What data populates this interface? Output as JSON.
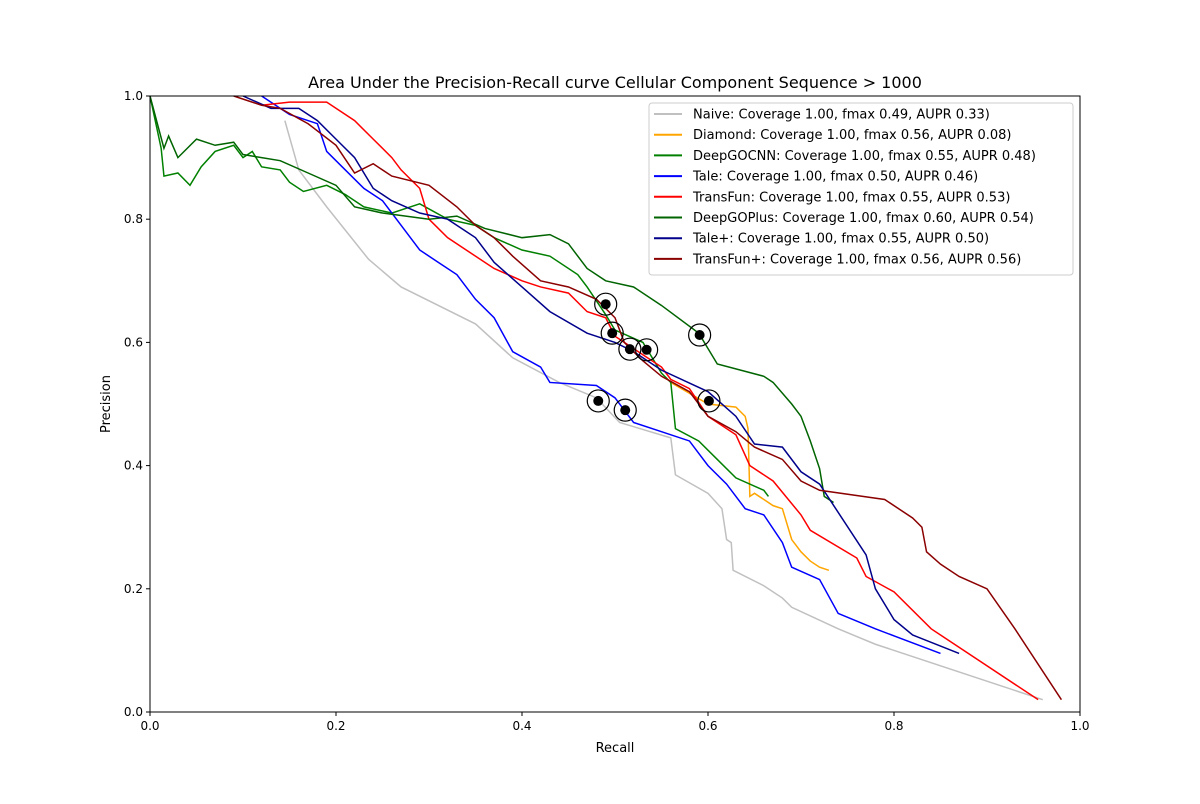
{
  "chart_data": {
    "type": "line",
    "title": "Area Under the Precision-Recall curve Cellular Component Sequence > 1000",
    "xlabel": "Recall",
    "ylabel": "Precision",
    "xlim": [
      0,
      1
    ],
    "ylim": [
      0,
      1
    ],
    "xticks": [
      "0.0",
      "0.2",
      "0.4",
      "0.6",
      "0.8",
      "1.0"
    ],
    "yticks": [
      "0.0",
      "0.2",
      "0.4",
      "0.6",
      "0.8",
      "1.0"
    ],
    "grid": false,
    "legend_placement": "top-right",
    "series": [
      {
        "name": "Naive: Coverage  1.00, fmax  0.49, AUPR 0.33)",
        "color": "#c0c0c0",
        "points": [
          [
            0.145,
            0.96
          ],
          [
            0.16,
            0.88
          ],
          [
            0.19,
            0.82
          ],
          [
            0.235,
            0.735
          ],
          [
            0.27,
            0.69
          ],
          [
            0.35,
            0.63
          ],
          [
            0.39,
            0.575
          ],
          [
            0.44,
            0.535
          ],
          [
            0.48,
            0.51
          ],
          [
            0.505,
            0.47
          ],
          [
            0.56,
            0.445
          ],
          [
            0.565,
            0.385
          ],
          [
            0.6,
            0.355
          ],
          [
            0.615,
            0.33
          ],
          [
            0.62,
            0.28
          ],
          [
            0.625,
            0.275
          ],
          [
            0.627,
            0.23
          ],
          [
            0.66,
            0.205
          ],
          [
            0.68,
            0.185
          ],
          [
            0.69,
            0.17
          ],
          [
            0.74,
            0.135
          ],
          [
            0.78,
            0.11
          ],
          [
            0.85,
            0.075
          ],
          [
            0.96,
            0.02
          ]
        ]
      },
      {
        "name": "Diamond: Coverage  1.00, fmax  0.56, AUPR 0.08)",
        "color": "#ffa500",
        "points": [
          [
            0.56,
            0.535
          ],
          [
            0.6,
            0.5
          ],
          [
            0.63,
            0.495
          ],
          [
            0.64,
            0.48
          ],
          [
            0.643,
            0.46
          ],
          [
            0.645,
            0.35
          ],
          [
            0.65,
            0.355
          ],
          [
            0.67,
            0.335
          ],
          [
            0.68,
            0.33
          ],
          [
            0.69,
            0.28
          ],
          [
            0.7,
            0.26
          ],
          [
            0.71,
            0.245
          ],
          [
            0.72,
            0.235
          ],
          [
            0.73,
            0.23
          ]
        ]
      },
      {
        "name": "DeepGOCNN: Coverage  1.00, fmax  0.55, AUPR 0.48)",
        "color": "#008000",
        "points": [
          [
            0.0,
            1.0
          ],
          [
            0.012,
            0.915
          ],
          [
            0.015,
            0.87
          ],
          [
            0.03,
            0.875
          ],
          [
            0.043,
            0.855
          ],
          [
            0.055,
            0.885
          ],
          [
            0.07,
            0.91
          ],
          [
            0.09,
            0.92
          ],
          [
            0.1,
            0.9
          ],
          [
            0.11,
            0.91
          ],
          [
            0.12,
            0.885
          ],
          [
            0.14,
            0.88
          ],
          [
            0.15,
            0.86
          ],
          [
            0.165,
            0.845
          ],
          [
            0.19,
            0.855
          ],
          [
            0.21,
            0.84
          ],
          [
            0.23,
            0.82
          ],
          [
            0.26,
            0.81
          ],
          [
            0.29,
            0.825
          ],
          [
            0.32,
            0.8
          ],
          [
            0.35,
            0.79
          ],
          [
            0.37,
            0.77
          ],
          [
            0.4,
            0.75
          ],
          [
            0.43,
            0.74
          ],
          [
            0.46,
            0.71
          ],
          [
            0.47,
            0.69
          ],
          [
            0.49,
            0.645
          ],
          [
            0.5,
            0.62
          ],
          [
            0.53,
            0.6
          ],
          [
            0.55,
            0.55
          ],
          [
            0.56,
            0.535
          ],
          [
            0.565,
            0.46
          ],
          [
            0.59,
            0.44
          ],
          [
            0.61,
            0.41
          ],
          [
            0.63,
            0.38
          ],
          [
            0.66,
            0.36
          ],
          [
            0.665,
            0.35
          ]
        ]
      },
      {
        "name": "Tale: Coverage  1.00, fmax  0.50, AUPR 0.46)",
        "color": "#0000ff",
        "points": [
          [
            0.12,
            1.0
          ],
          [
            0.15,
            0.97
          ],
          [
            0.18,
            0.955
          ],
          [
            0.19,
            0.91
          ],
          [
            0.21,
            0.88
          ],
          [
            0.23,
            0.85
          ],
          [
            0.25,
            0.83
          ],
          [
            0.27,
            0.79
          ],
          [
            0.29,
            0.75
          ],
          [
            0.31,
            0.73
          ],
          [
            0.33,
            0.71
          ],
          [
            0.35,
            0.67
          ],
          [
            0.37,
            0.64
          ],
          [
            0.39,
            0.585
          ],
          [
            0.42,
            0.56
          ],
          [
            0.43,
            0.535
          ],
          [
            0.48,
            0.53
          ],
          [
            0.5,
            0.51
          ],
          [
            0.51,
            0.49
          ],
          [
            0.52,
            0.47
          ],
          [
            0.55,
            0.455
          ],
          [
            0.58,
            0.44
          ],
          [
            0.6,
            0.4
          ],
          [
            0.62,
            0.37
          ],
          [
            0.64,
            0.33
          ],
          [
            0.66,
            0.32
          ],
          [
            0.68,
            0.275
          ],
          [
            0.69,
            0.235
          ],
          [
            0.72,
            0.215
          ],
          [
            0.74,
            0.16
          ],
          [
            0.78,
            0.135
          ],
          [
            0.85,
            0.095
          ]
        ]
      },
      {
        "name": "TransFun: Coverage  1.00, fmax  0.55, AUPR 0.53)",
        "color": "#ff0000",
        "points": [
          [
            0.12,
            0.985
          ],
          [
            0.15,
            0.99
          ],
          [
            0.19,
            0.99
          ],
          [
            0.22,
            0.96
          ],
          [
            0.24,
            0.93
          ],
          [
            0.26,
            0.9
          ],
          [
            0.27,
            0.88
          ],
          [
            0.29,
            0.85
          ],
          [
            0.3,
            0.8
          ],
          [
            0.32,
            0.77
          ],
          [
            0.34,
            0.75
          ],
          [
            0.37,
            0.72
          ],
          [
            0.4,
            0.7
          ],
          [
            0.42,
            0.69
          ],
          [
            0.45,
            0.68
          ],
          [
            0.47,
            0.65
          ],
          [
            0.49,
            0.64
          ],
          [
            0.5,
            0.61
          ],
          [
            0.53,
            0.58
          ],
          [
            0.55,
            0.56
          ],
          [
            0.56,
            0.54
          ],
          [
            0.58,
            0.525
          ],
          [
            0.6,
            0.48
          ],
          [
            0.63,
            0.45
          ],
          [
            0.645,
            0.4
          ],
          [
            0.67,
            0.375
          ],
          [
            0.7,
            0.32
          ],
          [
            0.71,
            0.295
          ],
          [
            0.76,
            0.25
          ],
          [
            0.77,
            0.22
          ],
          [
            0.8,
            0.195
          ],
          [
            0.84,
            0.135
          ],
          [
            0.955,
            0.02
          ]
        ]
      },
      {
        "name": "DeepGOPlus: Coverage  1.00, fmax  0.60, AUPR 0.54)",
        "color": "#006400",
        "points": [
          [
            0.0,
            1.0
          ],
          [
            0.015,
            0.915
          ],
          [
            0.02,
            0.935
          ],
          [
            0.03,
            0.9
          ],
          [
            0.05,
            0.93
          ],
          [
            0.07,
            0.92
          ],
          [
            0.09,
            0.925
          ],
          [
            0.1,
            0.905
          ],
          [
            0.12,
            0.9
          ],
          [
            0.14,
            0.895
          ],
          [
            0.17,
            0.875
          ],
          [
            0.2,
            0.855
          ],
          [
            0.22,
            0.82
          ],
          [
            0.25,
            0.81
          ],
          [
            0.3,
            0.8
          ],
          [
            0.33,
            0.805
          ],
          [
            0.36,
            0.785
          ],
          [
            0.4,
            0.77
          ],
          [
            0.43,
            0.775
          ],
          [
            0.45,
            0.76
          ],
          [
            0.47,
            0.72
          ],
          [
            0.49,
            0.7
          ],
          [
            0.52,
            0.69
          ],
          [
            0.55,
            0.66
          ],
          [
            0.59,
            0.615
          ],
          [
            0.61,
            0.565
          ],
          [
            0.66,
            0.545
          ],
          [
            0.67,
            0.535
          ],
          [
            0.69,
            0.5
          ],
          [
            0.7,
            0.48
          ],
          [
            0.71,
            0.44
          ],
          [
            0.72,
            0.395
          ],
          [
            0.725,
            0.35
          ],
          [
            0.735,
            0.34
          ]
        ]
      },
      {
        "name": "Tale+: Coverage  1.00, fmax  0.55, AUPR 0.50)",
        "color": "#00008b",
        "points": [
          [
            0.1,
            1.0
          ],
          [
            0.13,
            0.98
          ],
          [
            0.16,
            0.98
          ],
          [
            0.18,
            0.96
          ],
          [
            0.2,
            0.93
          ],
          [
            0.22,
            0.9
          ],
          [
            0.24,
            0.85
          ],
          [
            0.26,
            0.83
          ],
          [
            0.29,
            0.81
          ],
          [
            0.32,
            0.8
          ],
          [
            0.35,
            0.77
          ],
          [
            0.37,
            0.73
          ],
          [
            0.4,
            0.69
          ],
          [
            0.43,
            0.65
          ],
          [
            0.47,
            0.615
          ],
          [
            0.5,
            0.6
          ],
          [
            0.52,
            0.585
          ],
          [
            0.55,
            0.555
          ],
          [
            0.6,
            0.52
          ],
          [
            0.63,
            0.48
          ],
          [
            0.65,
            0.435
          ],
          [
            0.68,
            0.43
          ],
          [
            0.7,
            0.39
          ],
          [
            0.72,
            0.37
          ],
          [
            0.77,
            0.255
          ],
          [
            0.78,
            0.2
          ],
          [
            0.8,
            0.15
          ],
          [
            0.82,
            0.125
          ],
          [
            0.87,
            0.095
          ]
        ]
      },
      {
        "name": "TransFun+: Coverage  1.00, fmax  0.56, AUPR 0.56)",
        "color": "#8b0000",
        "points": [
          [
            0.09,
            1.0
          ],
          [
            0.12,
            0.985
          ],
          [
            0.14,
            0.98
          ],
          [
            0.17,
            0.955
          ],
          [
            0.2,
            0.92
          ],
          [
            0.22,
            0.875
          ],
          [
            0.24,
            0.89
          ],
          [
            0.26,
            0.87
          ],
          [
            0.3,
            0.855
          ],
          [
            0.33,
            0.82
          ],
          [
            0.35,
            0.79
          ],
          [
            0.37,
            0.77
          ],
          [
            0.39,
            0.74
          ],
          [
            0.42,
            0.7
          ],
          [
            0.45,
            0.69
          ],
          [
            0.48,
            0.67
          ],
          [
            0.5,
            0.64
          ],
          [
            0.51,
            0.6
          ],
          [
            0.53,
            0.57
          ],
          [
            0.55,
            0.545
          ],
          [
            0.58,
            0.52
          ],
          [
            0.6,
            0.48
          ],
          [
            0.63,
            0.455
          ],
          [
            0.65,
            0.43
          ],
          [
            0.68,
            0.41
          ],
          [
            0.7,
            0.375
          ],
          [
            0.72,
            0.36
          ],
          [
            0.79,
            0.345
          ],
          [
            0.82,
            0.315
          ],
          [
            0.83,
            0.3
          ],
          [
            0.835,
            0.26
          ],
          [
            0.85,
            0.24
          ],
          [
            0.87,
            0.22
          ],
          [
            0.9,
            0.2
          ],
          [
            0.93,
            0.135
          ],
          [
            0.98,
            0.02
          ]
        ]
      }
    ],
    "fmax_markers": [
      [
        0.49,
        0.662
      ],
      [
        0.497,
        0.615
      ],
      [
        0.516,
        0.589
      ],
      [
        0.534,
        0.588
      ],
      [
        0.591,
        0.612
      ],
      [
        0.601,
        0.505
      ],
      [
        0.482,
        0.505
      ],
      [
        0.511,
        0.49
      ]
    ]
  }
}
